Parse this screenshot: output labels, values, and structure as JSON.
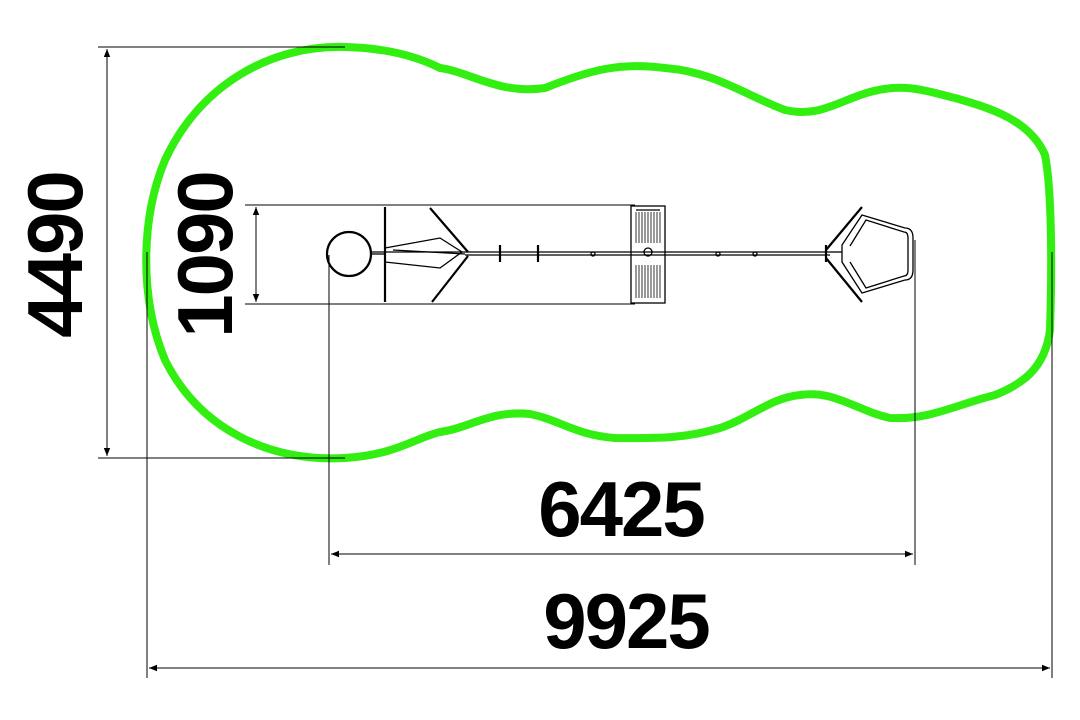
{
  "drawing": {
    "dimensions": {
      "overall_depth": "4490",
      "equipment_depth": "1090",
      "equipment_length": "6425",
      "overall_length": "9925"
    },
    "colors": {
      "safety_zone": "#33ee11",
      "lines": "#000000",
      "background": "#ffffff"
    }
  }
}
